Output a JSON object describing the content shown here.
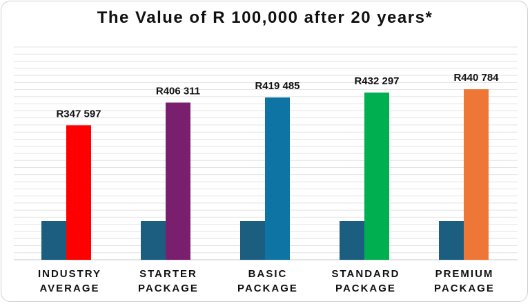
{
  "chart_data": {
    "type": "bar",
    "title": "The Value of R 100,000 after 20 years*",
    "categories": [
      [
        "INDUSTRY",
        "AVERAGE"
      ],
      [
        "STARTER",
        "PACKAGE"
      ],
      [
        "BASIC",
        "PACKAGE"
      ],
      [
        "STANDARD",
        "PACKAGE"
      ],
      [
        "PREMIUM",
        "PACKAGE"
      ]
    ],
    "series": [
      {
        "values": [
          100000,
          100000,
          100000,
          100000,
          100000
        ],
        "color": "#1c5e80"
      },
      {
        "values": [
          347597,
          406311,
          419485,
          432297,
          440784
        ],
        "data_labels": [
          "R347 597",
          "R406 311",
          "R419 485",
          "R432 297",
          "R440 784"
        ],
        "colors": [
          "#ff0000",
          "#7a1f6e",
          "#0d74a3",
          "#00b050",
          "#ee7738"
        ]
      }
    ],
    "ylim": [
      0,
      550000
    ],
    "grid": true,
    "legend": "none"
  }
}
